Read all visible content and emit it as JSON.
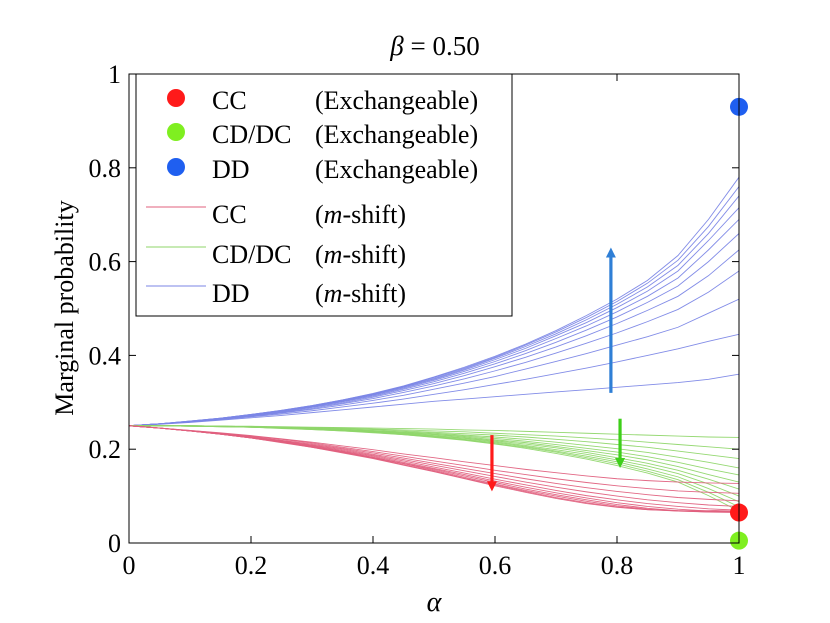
{
  "chart_data": {
    "type": "line",
    "title": "β = 0.50",
    "title_symbol": "β",
    "title_value": "= 0.50",
    "xlabel": "α",
    "ylabel": "Marginal probability",
    "xlim": [
      0,
      1
    ],
    "ylim": [
      0,
      1
    ],
    "xticks": [
      0,
      0.2,
      0.4,
      0.6,
      0.8,
      1
    ],
    "xtick_labels": [
      "0",
      "0.2",
      "0.4",
      "0.6",
      "0.8",
      "1"
    ],
    "yticks": [
      0,
      0.2,
      0.4,
      0.6,
      0.8,
      1
    ],
    "ytick_labels": [
      "0",
      "0.2",
      "0.4",
      "0.6",
      "0.8",
      "1"
    ],
    "grid": false,
    "legend_position": "top-left",
    "legend": [
      {
        "marker": "dot",
        "color": "#ff1a1a",
        "label": "CC",
        "note": "(Exchangeable)"
      },
      {
        "marker": "dot",
        "color": "#7fef20",
        "label": "CD/DC",
        "note": "(Exchangeable)"
      },
      {
        "marker": "dot",
        "color": "#1f5ff0",
        "label": "DD",
        "note": "(Exchangeable)"
      },
      {
        "marker": "line",
        "color": "#e0607e",
        "label": "CC",
        "note_italic": "m",
        "note_rest": "-shift)"
      },
      {
        "marker": "line",
        "color": "#8fd66a",
        "label": "CD/DC",
        "note_italic": "m",
        "note_rest": "-shift)"
      },
      {
        "marker": "line",
        "color": "#7b86e6",
        "label": "DD",
        "note_italic": "m",
        "note_rest": "-shift)"
      }
    ],
    "x": [
      0,
      0.05,
      0.1,
      0.15,
      0.2,
      0.25,
      0.3,
      0.35,
      0.4,
      0.45,
      0.5,
      0.55,
      0.6,
      0.65,
      0.7,
      0.75,
      0.8,
      0.85,
      0.9,
      0.95,
      1
    ],
    "exchangeable_points": [
      {
        "name": "CC",
        "x": 1,
        "y": 0.065,
        "color": "#ff1a1a"
      },
      {
        "name": "CD/DC",
        "x": 1,
        "y": 0.005,
        "color": "#7fef20"
      },
      {
        "name": "DD",
        "x": 1,
        "y": 0.93,
        "color": "#1f5ff0"
      }
    ],
    "series": [
      {
        "group": "DD",
        "color": "#7b86e6",
        "values": [
          0.25,
          0.253,
          0.257,
          0.262,
          0.267,
          0.272,
          0.278,
          0.284,
          0.29,
          0.296,
          0.302,
          0.307,
          0.312,
          0.317,
          0.322,
          0.327,
          0.332,
          0.337,
          0.342,
          0.349,
          0.36
        ]
      },
      {
        "group": "DD",
        "color": "#7b86e6",
        "values": [
          0.25,
          0.254,
          0.258,
          0.263,
          0.269,
          0.275,
          0.282,
          0.29,
          0.298,
          0.307,
          0.317,
          0.327,
          0.338,
          0.349,
          0.361,
          0.373,
          0.386,
          0.4,
          0.414,
          0.43,
          0.445
        ]
      },
      {
        "group": "DD",
        "color": "#7b86e6",
        "values": [
          0.25,
          0.254,
          0.258,
          0.264,
          0.27,
          0.277,
          0.285,
          0.294,
          0.304,
          0.315,
          0.328,
          0.341,
          0.355,
          0.371,
          0.387,
          0.404,
          0.422,
          0.44,
          0.46,
          0.49,
          0.52
        ]
      },
      {
        "group": "DD",
        "color": "#7b86e6",
        "values": [
          0.25,
          0.254,
          0.259,
          0.264,
          0.271,
          0.278,
          0.287,
          0.297,
          0.308,
          0.321,
          0.335,
          0.35,
          0.367,
          0.385,
          0.405,
          0.426,
          0.448,
          0.472,
          0.498,
          0.535,
          0.58
        ]
      },
      {
        "group": "DD",
        "color": "#7b86e6",
        "values": [
          0.25,
          0.254,
          0.259,
          0.265,
          0.272,
          0.279,
          0.289,
          0.299,
          0.311,
          0.325,
          0.34,
          0.357,
          0.376,
          0.396,
          0.418,
          0.442,
          0.468,
          0.496,
          0.526,
          0.57,
          0.625
        ]
      },
      {
        "group": "DD",
        "color": "#7b86e6",
        "values": [
          0.25,
          0.254,
          0.259,
          0.265,
          0.272,
          0.28,
          0.29,
          0.301,
          0.313,
          0.328,
          0.344,
          0.362,
          0.382,
          0.404,
          0.428,
          0.454,
          0.482,
          0.513,
          0.548,
          0.6,
          0.66
        ]
      },
      {
        "group": "DD",
        "color": "#7b86e6",
        "values": [
          0.25,
          0.254,
          0.259,
          0.265,
          0.273,
          0.281,
          0.291,
          0.302,
          0.315,
          0.33,
          0.347,
          0.366,
          0.387,
          0.41,
          0.436,
          0.463,
          0.493,
          0.526,
          0.565,
          0.625,
          0.69
        ]
      },
      {
        "group": "DD",
        "color": "#7b86e6",
        "values": [
          0.25,
          0.254,
          0.259,
          0.266,
          0.273,
          0.282,
          0.292,
          0.303,
          0.316,
          0.332,
          0.349,
          0.369,
          0.391,
          0.415,
          0.442,
          0.47,
          0.502,
          0.537,
          0.58,
          0.645,
          0.715
        ]
      },
      {
        "group": "DD",
        "color": "#7b86e6",
        "values": [
          0.25,
          0.254,
          0.26,
          0.266,
          0.274,
          0.282,
          0.292,
          0.304,
          0.317,
          0.333,
          0.351,
          0.371,
          0.394,
          0.419,
          0.446,
          0.476,
          0.509,
          0.546,
          0.592,
          0.66,
          0.74
        ]
      },
      {
        "group": "DD",
        "color": "#7b86e6",
        "values": [
          0.25,
          0.254,
          0.26,
          0.266,
          0.274,
          0.283,
          0.293,
          0.305,
          0.318,
          0.334,
          0.353,
          0.373,
          0.396,
          0.422,
          0.45,
          0.481,
          0.515,
          0.554,
          0.603,
          0.675,
          0.76
        ]
      },
      {
        "group": "DD",
        "color": "#7b86e6",
        "values": [
          0.25,
          0.254,
          0.26,
          0.266,
          0.274,
          0.283,
          0.293,
          0.305,
          0.319,
          0.335,
          0.354,
          0.375,
          0.398,
          0.424,
          0.453,
          0.485,
          0.52,
          0.56,
          0.613,
          0.69,
          0.78
        ]
      },
      {
        "group": "CD/DC",
        "color": "#8fd66a",
        "values": [
          0.25,
          0.25,
          0.25,
          0.249,
          0.249,
          0.248,
          0.247,
          0.246,
          0.245,
          0.244,
          0.243,
          0.241,
          0.24,
          0.238,
          0.236,
          0.234,
          0.232,
          0.23,
          0.228,
          0.226,
          0.225
        ]
      },
      {
        "group": "CD/DC",
        "color": "#8fd66a",
        "values": [
          0.25,
          0.25,
          0.25,
          0.249,
          0.248,
          0.247,
          0.246,
          0.245,
          0.243,
          0.241,
          0.239,
          0.237,
          0.234,
          0.231,
          0.228,
          0.224,
          0.22,
          0.215,
          0.21,
          0.205,
          0.2
        ]
      },
      {
        "group": "CD/DC",
        "color": "#8fd66a",
        "values": [
          0.25,
          0.25,
          0.25,
          0.249,
          0.248,
          0.247,
          0.245,
          0.244,
          0.242,
          0.239,
          0.236,
          0.233,
          0.23,
          0.226,
          0.221,
          0.216,
          0.21,
          0.204,
          0.196,
          0.188,
          0.18
        ]
      },
      {
        "group": "CD/DC",
        "color": "#8fd66a",
        "values": [
          0.25,
          0.25,
          0.25,
          0.249,
          0.248,
          0.246,
          0.245,
          0.243,
          0.24,
          0.237,
          0.234,
          0.23,
          0.226,
          0.221,
          0.215,
          0.208,
          0.201,
          0.193,
          0.183,
          0.172,
          0.16
        ]
      },
      {
        "group": "CD/DC",
        "color": "#8fd66a",
        "values": [
          0.25,
          0.25,
          0.25,
          0.249,
          0.248,
          0.246,
          0.244,
          0.242,
          0.239,
          0.236,
          0.232,
          0.228,
          0.223,
          0.217,
          0.21,
          0.202,
          0.194,
          0.184,
          0.172,
          0.158,
          0.145
        ]
      },
      {
        "group": "CD/DC",
        "color": "#8fd66a",
        "values": [
          0.25,
          0.25,
          0.249,
          0.249,
          0.247,
          0.246,
          0.244,
          0.241,
          0.238,
          0.235,
          0.231,
          0.226,
          0.22,
          0.214,
          0.206,
          0.197,
          0.188,
          0.177,
          0.163,
          0.146,
          0.13
        ]
      },
      {
        "group": "CD/DC",
        "color": "#8fd66a",
        "values": [
          0.25,
          0.25,
          0.249,
          0.249,
          0.247,
          0.245,
          0.243,
          0.241,
          0.238,
          0.234,
          0.229,
          0.224,
          0.218,
          0.211,
          0.203,
          0.193,
          0.182,
          0.17,
          0.155,
          0.136,
          0.115
        ]
      },
      {
        "group": "CD/DC",
        "color": "#8fd66a",
        "values": [
          0.25,
          0.25,
          0.249,
          0.248,
          0.247,
          0.245,
          0.243,
          0.24,
          0.237,
          0.233,
          0.228,
          0.223,
          0.216,
          0.208,
          0.199,
          0.189,
          0.177,
          0.164,
          0.148,
          0.126,
          0.1
        ]
      },
      {
        "group": "CD/DC",
        "color": "#8fd66a",
        "values": [
          0.25,
          0.25,
          0.249,
          0.248,
          0.247,
          0.245,
          0.243,
          0.24,
          0.236,
          0.232,
          0.227,
          0.221,
          0.214,
          0.206,
          0.196,
          0.185,
          0.173,
          0.158,
          0.141,
          0.116,
          0.088
        ]
      },
      {
        "group": "CD/DC",
        "color": "#8fd66a",
        "values": [
          0.25,
          0.25,
          0.249,
          0.248,
          0.247,
          0.245,
          0.242,
          0.239,
          0.236,
          0.231,
          0.226,
          0.22,
          0.212,
          0.204,
          0.194,
          0.182,
          0.169,
          0.153,
          0.135,
          0.108,
          0.077
        ]
      },
      {
        "group": "CD/DC",
        "color": "#8fd66a",
        "values": [
          0.25,
          0.25,
          0.249,
          0.248,
          0.247,
          0.244,
          0.242,
          0.239,
          0.235,
          0.231,
          0.225,
          0.219,
          0.211,
          0.202,
          0.191,
          0.179,
          0.165,
          0.149,
          0.13,
          0.101,
          0.068
        ]
      },
      {
        "group": "CC",
        "color": "#e0607e",
        "values": [
          0.25,
          0.245,
          0.24,
          0.235,
          0.229,
          0.222,
          0.215,
          0.207,
          0.199,
          0.19,
          0.182,
          0.173,
          0.165,
          0.157,
          0.15,
          0.143,
          0.137,
          0.133,
          0.13,
          0.128,
          0.127
        ]
      },
      {
        "group": "CC",
        "color": "#e0607e",
        "values": [
          0.25,
          0.245,
          0.24,
          0.234,
          0.228,
          0.221,
          0.213,
          0.204,
          0.195,
          0.185,
          0.175,
          0.165,
          0.155,
          0.146,
          0.137,
          0.129,
          0.122,
          0.116,
          0.111,
          0.108,
          0.106
        ]
      },
      {
        "group": "CC",
        "color": "#e0607e",
        "values": [
          0.25,
          0.245,
          0.239,
          0.233,
          0.227,
          0.219,
          0.211,
          0.202,
          0.192,
          0.181,
          0.17,
          0.159,
          0.148,
          0.137,
          0.127,
          0.118,
          0.11,
          0.103,
          0.097,
          0.093,
          0.09
        ]
      },
      {
        "group": "CC",
        "color": "#e0607e",
        "values": [
          0.25,
          0.245,
          0.239,
          0.233,
          0.226,
          0.218,
          0.209,
          0.2,
          0.189,
          0.178,
          0.166,
          0.154,
          0.142,
          0.13,
          0.119,
          0.109,
          0.1,
          0.092,
          0.086,
          0.081,
          0.078
        ]
      },
      {
        "group": "CC",
        "color": "#e0607e",
        "values": [
          0.25,
          0.245,
          0.239,
          0.233,
          0.225,
          0.217,
          0.208,
          0.198,
          0.187,
          0.175,
          0.162,
          0.149,
          0.136,
          0.124,
          0.112,
          0.101,
          0.092,
          0.084,
          0.078,
          0.073,
          0.07
        ]
      },
      {
        "group": "CC",
        "color": "#e0607e",
        "values": [
          0.25,
          0.245,
          0.239,
          0.232,
          0.225,
          0.216,
          0.207,
          0.196,
          0.185,
          0.172,
          0.159,
          0.146,
          0.132,
          0.119,
          0.107,
          0.096,
          0.086,
          0.078,
          0.072,
          0.068,
          0.066
        ]
      },
      {
        "group": "CC",
        "color": "#e0607e",
        "values": [
          0.25,
          0.245,
          0.239,
          0.232,
          0.224,
          0.216,
          0.206,
          0.195,
          0.183,
          0.17,
          0.157,
          0.143,
          0.129,
          0.115,
          0.103,
          0.092,
          0.082,
          0.074,
          0.069,
          0.066,
          0.065
        ]
      },
      {
        "group": "CC",
        "color": "#e0607e",
        "values": [
          0.25,
          0.245,
          0.239,
          0.232,
          0.224,
          0.215,
          0.205,
          0.194,
          0.182,
          0.169,
          0.155,
          0.14,
          0.126,
          0.112,
          0.1,
          0.089,
          0.079,
          0.072,
          0.068,
          0.066,
          0.066
        ]
      },
      {
        "group": "CC",
        "color": "#e0607e",
        "values": [
          0.25,
          0.245,
          0.239,
          0.232,
          0.224,
          0.215,
          0.204,
          0.193,
          0.181,
          0.167,
          0.153,
          0.138,
          0.124,
          0.11,
          0.097,
          0.086,
          0.077,
          0.071,
          0.068,
          0.067,
          0.068
        ]
      },
      {
        "group": "CC",
        "color": "#e0607e",
        "values": [
          0.25,
          0.245,
          0.239,
          0.232,
          0.224,
          0.214,
          0.204,
          0.192,
          0.18,
          0.166,
          0.152,
          0.137,
          0.122,
          0.108,
          0.095,
          0.084,
          0.076,
          0.071,
          0.069,
          0.069,
          0.071
        ]
      }
    ],
    "arrows": [
      {
        "name": "CC",
        "color": "#ff1a1a",
        "x": 0.595,
        "y_from": 0.23,
        "y_to": 0.11
      },
      {
        "name": "CD/DC",
        "color": "#3ecf1a",
        "x": 0.805,
        "y_from": 0.265,
        "y_to": 0.16
      },
      {
        "name": "DD",
        "color": "#2f7fd6",
        "x": 0.79,
        "y_from": 0.32,
        "y_to": 0.63
      }
    ]
  }
}
